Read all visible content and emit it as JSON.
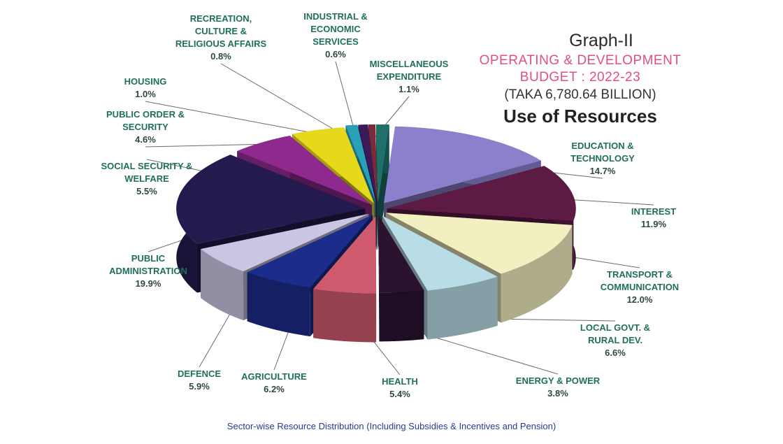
{
  "header": {
    "graph_label": "Graph-II",
    "title_line1": "OPERATING & DEVELOPMENT",
    "title_line2": "BUDGET : 2022-23",
    "subtitle": "(TAKA 6,780.64 BILLION)",
    "heading": "Use of Resources"
  },
  "footnote": "Sector-wise Resource Distribution (Including Subsidies & Incentives and Pension)",
  "colors": {
    "label_text": "#1f6f5c",
    "pct_text": "#2f4a3a",
    "leader_line": "#6a6a6a"
  },
  "chart_data": {
    "type": "pie",
    "style": "3d-exploded",
    "title": "Use of Resources",
    "unit": "%",
    "slices": [
      {
        "label": [
          "EDUCATION &",
          "TECHNOLOGY"
        ],
        "value": 14.7,
        "display": "14.7%",
        "color": "#8a80cc"
      },
      {
        "label": [
          "INTEREST"
        ],
        "value": 11.9,
        "display": "11.9%",
        "color": "#5c1a44"
      },
      {
        "label": [
          "TRANSPORT &",
          "COMMUNICATION"
        ],
        "value": 12.0,
        "display": "12.0%",
        "color": "#f2efc0"
      },
      {
        "label": [
          "LOCAL GOVT. &",
          "RURAL DEV."
        ],
        "value": 6.6,
        "display": "6.6%",
        "color": "#b9dde6"
      },
      {
        "label": [
          "ENERGY & POWER"
        ],
        "value": 3.8,
        "display": "3.8%",
        "color": "#2a1230"
      },
      {
        "label": [
          "HEALTH"
        ],
        "value": 5.4,
        "display": "5.4%",
        "color": "#cf5a6e"
      },
      {
        "label": [
          "AGRICULTURE"
        ],
        "value": 6.2,
        "display": "6.2%",
        "color": "#1c2c8a"
      },
      {
        "label": [
          "DEFENCE"
        ],
        "value": 5.9,
        "display": "5.9%",
        "color": "#c9c6e4"
      },
      {
        "label": [
          "PUBLIC",
          "ADMINISTRATION"
        ],
        "value": 19.9,
        "display": "19.9%",
        "color": "#241a4e"
      },
      {
        "label": [
          "SOCIAL SECURITY &",
          "WELFARE"
        ],
        "value": 5.5,
        "display": "5.5%",
        "color": "#8e2a8e"
      },
      {
        "label": [
          "PUBLIC ORDER &",
          "SECURITY"
        ],
        "value": 4.6,
        "display": "4.6%",
        "color": "#e6d81a"
      },
      {
        "label": [
          "HOUSING"
        ],
        "value": 1.0,
        "display": "1.0%",
        "color": "#28a0b8"
      },
      {
        "label": [
          "RECREATION,",
          "CULTURE &",
          "RELIGIOUS AFFAIRS"
        ],
        "value": 0.8,
        "display": "0.8%",
        "color": "#3a1a5a"
      },
      {
        "label": [
          "INDUSTRIAL &",
          "ECONOMIC",
          "SERVICES"
        ],
        "value": 0.6,
        "display": "0.6%",
        "color": "#7a2a3a"
      },
      {
        "label": [
          "MISCELLANEOUS",
          "EXPENDITURE"
        ],
        "value": 1.1,
        "display": "1.1%",
        "color": "#1f6f6a"
      }
    ]
  }
}
